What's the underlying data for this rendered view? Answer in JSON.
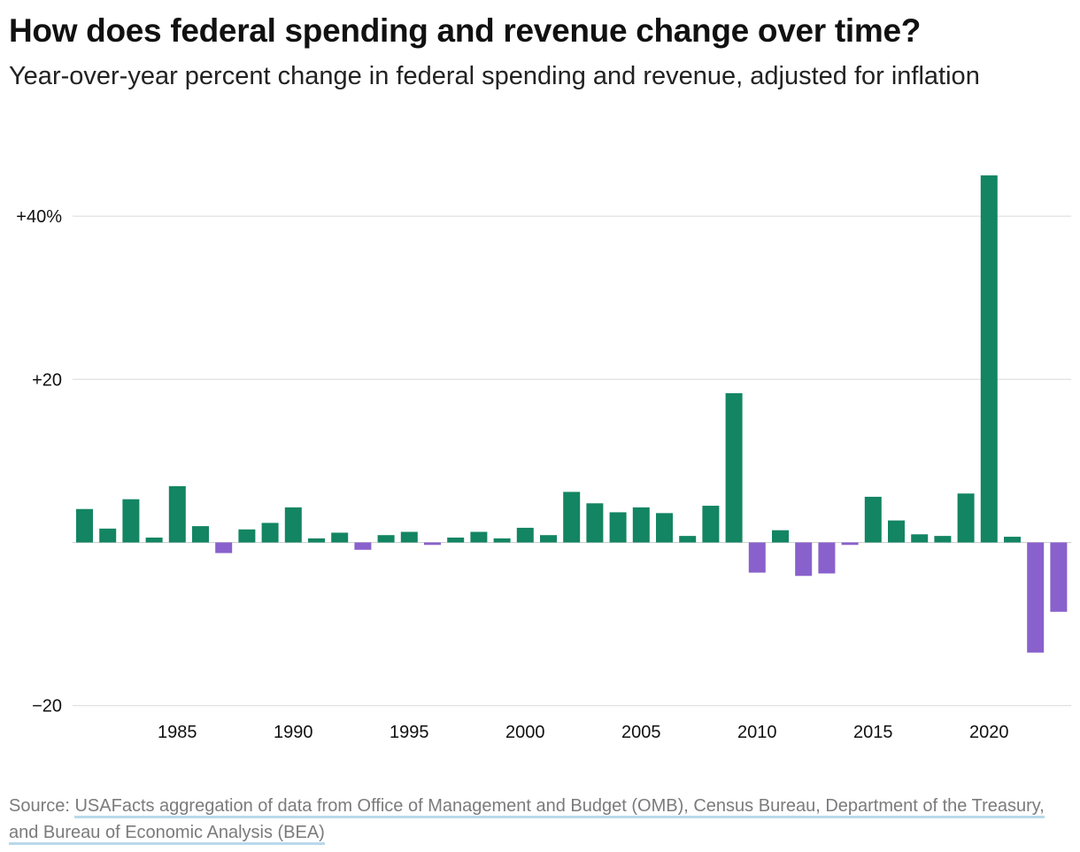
{
  "header": {
    "title": "How does federal spending and revenue change over time?",
    "subtitle": "Year-over-year percent change in federal spending and revenue, adjusted for inflation"
  },
  "colors": {
    "positive": "#138562",
    "negative": "#8961cc",
    "grid": "#d9d9d9",
    "zero_line": "#cfcfcf"
  },
  "chart_data": {
    "type": "bar",
    "title": "How does federal spending and revenue change over time?",
    "subtitle": "Year-over-year percent change in federal spending and revenue, adjusted for inflation",
    "xlabel": "",
    "ylabel": "",
    "categories": [
      1981,
      1982,
      1983,
      1984,
      1985,
      1986,
      1987,
      1988,
      1989,
      1990,
      1991,
      1992,
      1993,
      1994,
      1995,
      1996,
      1997,
      1998,
      1999,
      2000,
      2001,
      2002,
      2003,
      2004,
      2005,
      2006,
      2007,
      2008,
      2009,
      2010,
      2011,
      2012,
      2013,
      2014,
      2015,
      2016,
      2017,
      2018,
      2019,
      2020,
      2021,
      2022,
      2023
    ],
    "values": [
      4.1,
      1.7,
      5.3,
      0.6,
      6.9,
      2.0,
      -1.3,
      1.6,
      2.4,
      4.3,
      0.5,
      1.2,
      -0.9,
      0.9,
      1.3,
      -0.3,
      0.6,
      1.3,
      0.5,
      1.8,
      0.9,
      6.2,
      4.8,
      3.7,
      4.3,
      3.6,
      0.8,
      4.5,
      18.3,
      -3.7,
      1.5,
      -4.1,
      -3.8,
      -0.3,
      5.6,
      2.7,
      1.0,
      0.8,
      6.0,
      45.0,
      0.7,
      -13.5,
      -8.5
    ],
    "ylim": [
      -20,
      50
    ],
    "yticks": [
      {
        "value": 40,
        "label": "+40%"
      },
      {
        "value": 20,
        "label": "+20"
      },
      {
        "value": -20,
        "label": "−20"
      }
    ],
    "xticks": [
      {
        "value": 1985,
        "label": "1985"
      },
      {
        "value": 1990,
        "label": "1990"
      },
      {
        "value": 1995,
        "label": "1995"
      },
      {
        "value": 2000,
        "label": "2000"
      },
      {
        "value": 2005,
        "label": "2005"
      },
      {
        "value": 2010,
        "label": "2010"
      },
      {
        "value": 2015,
        "label": "2015"
      },
      {
        "value": 2020,
        "label": "2020"
      }
    ],
    "grid": true,
    "legend": "none"
  },
  "footer": {
    "source_prefix": "Source: ",
    "source_link": "USAFacts aggregation of data from Office of Management and Budget (OMB), Census Bureau, Department of the Treasury, and Bureau of Economic Analysis (BEA)"
  }
}
